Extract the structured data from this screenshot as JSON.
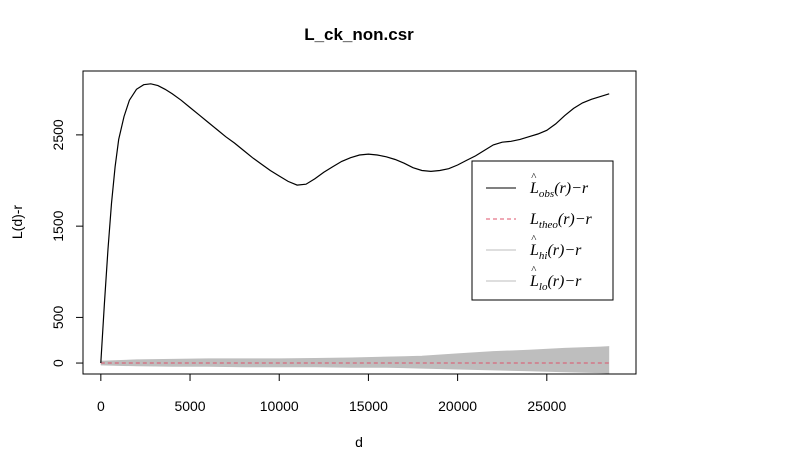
{
  "chart_data": {
    "type": "line",
    "title": "L_ck_non.csr",
    "xlabel": "d",
    "ylabel": "L(d)-r",
    "xlim": [
      -1000,
      30000
    ],
    "ylim": [
      -120,
      3200
    ],
    "x_ticks": [
      0,
      5000,
      10000,
      15000,
      20000,
      25000
    ],
    "y_ticks": [
      0,
      500,
      1500,
      2500
    ],
    "legend": {
      "position": "right",
      "items": [
        {
          "key": "obs",
          "base": "L",
          "hat": "^",
          "sub": "obs",
          "tail": "(r)−r",
          "color": "#000000",
          "style": "solid"
        },
        {
          "key": "theo",
          "base": "L",
          "hat": "",
          "sub": "theo",
          "tail": "(r)−r",
          "color": "#DF536B",
          "style": "dashed"
        },
        {
          "key": "hi",
          "base": "L",
          "hat": "^",
          "sub": "hi",
          "tail": "(r)−r",
          "color": "#BEBEBE",
          "style": "solid"
        },
        {
          "key": "lo",
          "base": "L",
          "hat": "^",
          "sub": "lo",
          "tail": "(r)−r",
          "color": "#BEBEBE",
          "style": "solid"
        }
      ]
    },
    "series": [
      {
        "key": "obs",
        "color": "#000000",
        "x": [
          0,
          200,
          400,
          600,
          800,
          1000,
          1300,
          1600,
          2000,
          2400,
          2800,
          3200,
          3600,
          4000,
          4500,
          5000,
          5500,
          6000,
          6500,
          7000,
          7500,
          8000,
          8500,
          9000,
          9500,
          10000,
          10500,
          11000,
          11500,
          12000,
          12500,
          13000,
          13500,
          14000,
          14500,
          15000,
          15500,
          16000,
          16500,
          17000,
          17500,
          18000,
          18500,
          19000,
          19500,
          20000,
          20500,
          21000,
          21500,
          22000,
          22500,
          23000,
          23500,
          24000,
          24500,
          25000,
          25500,
          26000,
          26500,
          27000,
          27500,
          28000,
          28500
        ],
        "y": [
          0,
          650,
          1250,
          1750,
          2150,
          2450,
          2700,
          2880,
          3000,
          3050,
          3060,
          3040,
          3000,
          2950,
          2880,
          2800,
          2720,
          2640,
          2560,
          2480,
          2410,
          2330,
          2250,
          2180,
          2110,
          2050,
          1990,
          1950,
          1960,
          2020,
          2090,
          2150,
          2210,
          2250,
          2280,
          2290,
          2280,
          2260,
          2230,
          2190,
          2140,
          2110,
          2100,
          2110,
          2130,
          2170,
          2220,
          2270,
          2330,
          2390,
          2420,
          2430,
          2450,
          2480,
          2510,
          2550,
          2620,
          2710,
          2790,
          2850,
          2890,
          2920,
          2950
        ]
      },
      {
        "key": "theo",
        "color": "#DF536B",
        "x": [
          0,
          28500
        ],
        "y": [
          0,
          0
        ]
      },
      {
        "key": "hi",
        "color": "#BEBEBE",
        "x": [
          0,
          2000,
          4000,
          6000,
          8000,
          10000,
          12000,
          14000,
          16000,
          17000,
          18000,
          20000,
          22000,
          24000,
          26000,
          28000,
          28500
        ],
        "y": [
          20,
          35,
          40,
          45,
          45,
          45,
          50,
          55,
          65,
          70,
          75,
          100,
          125,
          140,
          160,
          175,
          180
        ]
      },
      {
        "key": "lo",
        "color": "#BEBEBE",
        "x": [
          0,
          2000,
          4000,
          6000,
          8000,
          10000,
          12000,
          14000,
          16000,
          17000,
          18000,
          20000,
          22000,
          24000,
          26000,
          28000,
          28500
        ],
        "y": [
          -20,
          -30,
          -35,
          -35,
          -40,
          -40,
          -40,
          -45,
          -45,
          -50,
          -55,
          -65,
          -75,
          -85,
          -95,
          -105,
          -110
        ]
      }
    ]
  }
}
